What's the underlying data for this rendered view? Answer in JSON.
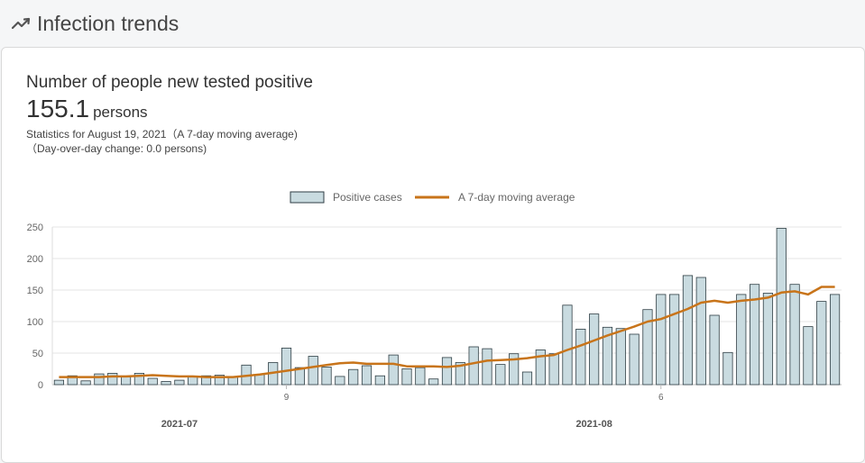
{
  "header": {
    "title": "Infection trends",
    "icon": "trend-line-icon"
  },
  "card": {
    "title": "Number of people new tested positive",
    "value": "155.1",
    "unit": "persons",
    "stats_line": "Statistics for August 19, 2021（A 7-day moving average)",
    "change_line": "（Day-over-day change: 0.0 persons)"
  },
  "colors": {
    "bar_fill": "#c9dbe0",
    "bar_stroke": "#2f3e44",
    "line": "#c8741a"
  },
  "chart_data": {
    "type": "bar",
    "legend": [
      {
        "name": "Positive cases",
        "kind": "bar"
      },
      {
        "name": "A 7-day moving average",
        "kind": "line"
      }
    ],
    "legend_position": "top-center",
    "ylim": [
      0,
      250
    ],
    "yticks": [
      "0",
      "50",
      "100",
      "150",
      "200",
      "250"
    ],
    "grid": true,
    "x_start": "2021-06-22",
    "x_ticks": [
      {
        "date": "2021-07-09",
        "label": "9"
      },
      {
        "date": "2021-08-06",
        "label": "6"
      }
    ],
    "x_month_labels": [
      {
        "date": "2021-07-01",
        "label": "2021-07"
      },
      {
        "date": "2021-08-01",
        "label": "2021-08"
      }
    ],
    "series": [
      {
        "name": "Positive cases",
        "type": "bar",
        "values": [
          7,
          14,
          6,
          17,
          18,
          12,
          18,
          10,
          5,
          7,
          12,
          14,
          15,
          12,
          31,
          16,
          35,
          58,
          27,
          45,
          28,
          13,
          24,
          30,
          14,
          47,
          25,
          27,
          9,
          43,
          35,
          60,
          57,
          32,
          49,
          20,
          55,
          49,
          126,
          88,
          112,
          91,
          89,
          80,
          119,
          143,
          143,
          173,
          170,
          110,
          51,
          143,
          159,
          145,
          248,
          159,
          92,
          132,
          143
        ]
      },
      {
        "name": "A 7-day moving average",
        "type": "line",
        "values": [
          12,
          12,
          12,
          12,
          13,
          13,
          14,
          15,
          14,
          13,
          13,
          12,
          12,
          12,
          14,
          16,
          19,
          22,
          25,
          28,
          31,
          34,
          35,
          33,
          33,
          33,
          29,
          29,
          29,
          28,
          30,
          34,
          38,
          39,
          40,
          42,
          45,
          47,
          55,
          62,
          70,
          78,
          85,
          92,
          100,
          104,
          112,
          120,
          130,
          133,
          130,
          133,
          135,
          138,
          146,
          148,
          143,
          155,
          155
        ]
      }
    ]
  }
}
